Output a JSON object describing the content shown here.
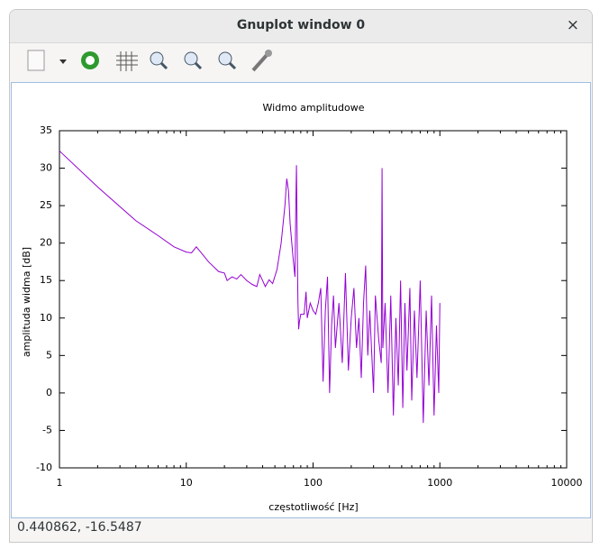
{
  "window": {
    "title": "Gnuplot window 0",
    "close": "×"
  },
  "status_bar": "0.440862, -16.5487",
  "chart_data": {
    "type": "line",
    "title": "Widmo amplitudowe",
    "x_label": "częstotliwość [Hz]",
    "y_label": "amplituda widma [dB]",
    "x_scale": "log",
    "color": "#9400d3",
    "xlim": [
      1,
      10000
    ],
    "xticks": [
      1,
      10,
      100,
      1000,
      10000
    ],
    "ylim": [
      -10,
      35
    ],
    "yticks": [
      -10,
      -5,
      0,
      5,
      10,
      15,
      20,
      25,
      30,
      35
    ],
    "x": [
      1,
      2,
      4,
      6,
      8,
      10,
      11,
      12,
      13,
      15,
      18,
      20,
      21,
      23,
      25,
      27,
      30,
      33,
      36,
      38,
      40,
      42,
      45,
      48,
      52,
      56,
      60,
      62,
      64,
      66,
      70,
      72,
      73,
      74,
      75,
      76,
      77,
      78,
      80,
      85,
      88,
      90,
      95,
      100,
      105,
      110,
      115,
      120,
      125,
      130,
      135,
      140,
      145,
      150,
      160,
      170,
      180,
      190,
      200,
      210,
      220,
      230,
      240,
      250,
      260,
      270,
      280,
      300,
      310,
      330,
      345,
      350,
      355,
      370,
      390,
      410,
      430,
      450,
      470,
      490,
      510,
      530,
      550,
      580,
      600,
      630,
      660,
      700,
      740,
      780,
      820,
      860,
      900,
      940,
      980,
      1000
    ],
    "values": [
      32.3,
      27.5,
      23,
      21,
      19.5,
      18.8,
      18.7,
      19.5,
      18.8,
      17.5,
      16.2,
      16,
      15,
      15.5,
      15.2,
      15.8,
      15,
      14.5,
      14.2,
      15.8,
      15,
      14.2,
      15.1,
      14.6,
      16.5,
      20,
      25,
      28.6,
      27,
      22.5,
      17.5,
      15.5,
      24,
      30.4,
      20,
      12,
      8.5,
      9.5,
      10.5,
      10.5,
      13.5,
      10,
      12,
      11,
      10.5,
      12,
      14,
      1.5,
      11,
      15.5,
      0,
      9,
      13,
      6,
      12,
      4,
      16,
      3,
      10,
      14,
      6,
      10,
      2,
      12,
      17,
      5,
      11,
      0,
      13,
      7,
      4,
      30,
      6,
      12,
      0,
      13,
      -3,
      10,
      1,
      15,
      -2,
      12,
      3,
      14,
      -1,
      11,
      2,
      15,
      -4,
      11,
      1,
      13,
      -3,
      9,
      0,
      12
    ]
  }
}
